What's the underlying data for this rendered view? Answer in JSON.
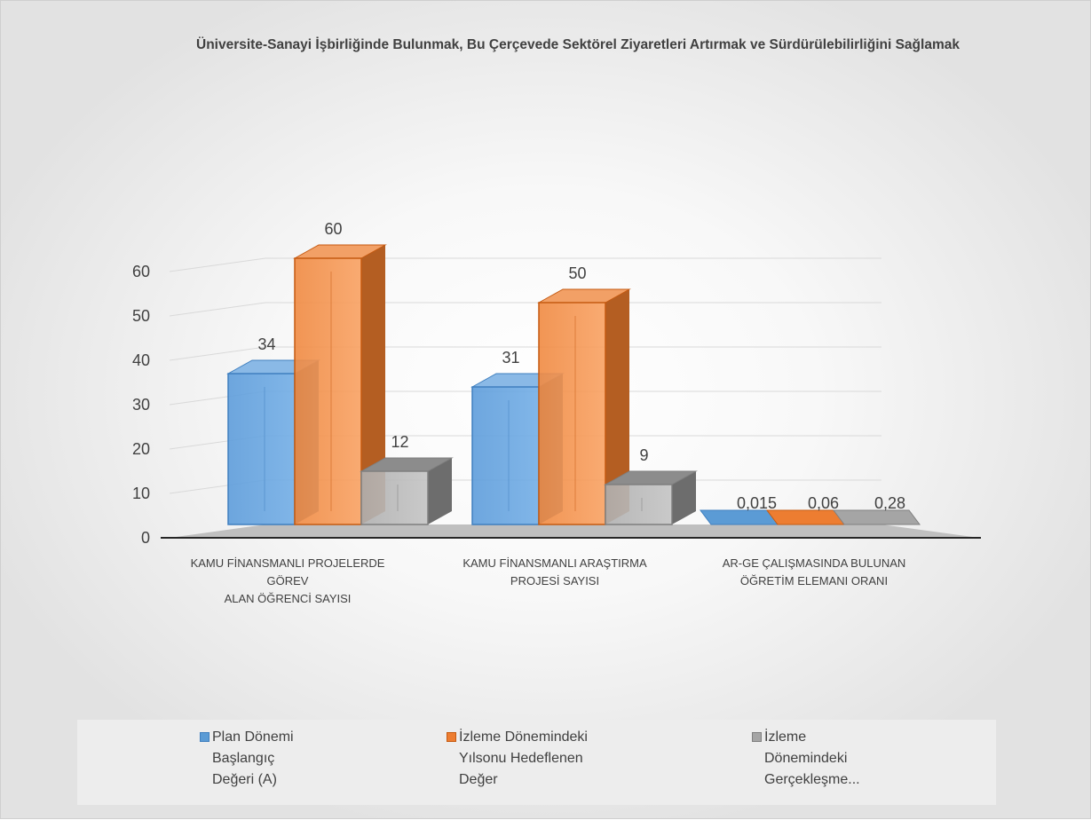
{
  "chart_data": {
    "type": "bar",
    "style": "3d-clustered-column",
    "title": "Üniversite-Sanayi İşbirliğinde Bulunmak, Bu Çerçevede Sektörel Ziyaretleri Artırmak ve Sürdürülebilirliğini Sağlamak",
    "categories": [
      [
        "KAMU FİNANSMANLI PROJELERDE",
        "GÖREV",
        "ALAN ÖĞRENCİ SAYISI"
      ],
      [
        "KAMU FİNANSMANLI ARAŞTIRMA",
        "PROJESİ SAYISI"
      ],
      [
        "AR-GE ÇALIŞMASINDA BULUNAN",
        "ÖĞRETİM ELEMANI ORANI"
      ]
    ],
    "series": [
      {
        "name_lines": [
          "Plan Dönemi",
          "Başlangıç",
          "Değeri (A)"
        ],
        "values": [
          34,
          31,
          0.015
        ],
        "labels": [
          "34",
          "31",
          "0,015"
        ],
        "color": "#5b9bd5"
      },
      {
        "name_lines": [
          "İzleme Dönemindeki",
          "Yılsonu Hedeflenen",
          "Değer"
        ],
        "values": [
          60,
          50,
          0.06
        ],
        "labels": [
          "60",
          "50",
          "0,06"
        ],
        "color": "#ed7d31"
      },
      {
        "name_lines": [
          "İzleme",
          "Dönemindeki",
          "Gerçekleşme..."
        ],
        "values": [
          12,
          9,
          0.28
        ],
        "labels": [
          "12",
          "9",
          "0,28"
        ],
        "color": "#a5a5a5"
      }
    ],
    "yticks": [
      "0",
      "10",
      "20",
      "30",
      "40",
      "50",
      "60"
    ],
    "ylim": [
      0,
      60
    ],
    "grid": true,
    "legend_position": "bottom"
  }
}
